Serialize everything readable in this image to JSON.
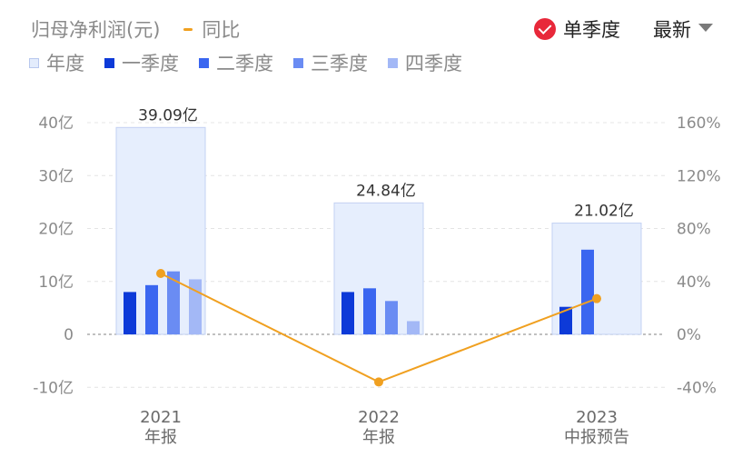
{
  "header": {
    "title": "归母净利润(元)",
    "yoy_label": "同比",
    "single_quarter_label": "单季度",
    "latest_label": "最新"
  },
  "legend": [
    {
      "label": "年度",
      "color": "#e3ecfc",
      "border": "#b8c8ee"
    },
    {
      "label": "一季度",
      "color": "#0d3ad8"
    },
    {
      "label": "二季度",
      "color": "#3a66f0"
    },
    {
      "label": "三季度",
      "color": "#6a8cf3"
    },
    {
      "label": "四季度",
      "color": "#a3b8f6"
    }
  ],
  "chart_data": {
    "type": "bar",
    "categories": [
      {
        "year": "2021",
        "kind": "年报"
      },
      {
        "year": "2022",
        "kind": "年报"
      },
      {
        "year": "2023",
        "kind": "中报预告"
      }
    ],
    "annual_values": [
      39.09,
      24.84,
      21.02
    ],
    "annual_labels": [
      "39.09亿",
      "24.84亿",
      "21.02亿"
    ],
    "series": [
      {
        "name": "一季度",
        "values": [
          8,
          8,
          5.2
        ]
      },
      {
        "name": "二季度",
        "values": [
          9.3,
          8.7,
          16
        ]
      },
      {
        "name": "三季度",
        "values": [
          11.9,
          6.3,
          null
        ]
      },
      {
        "name": "四季度",
        "values": [
          10.4,
          2.5,
          null
        ]
      }
    ],
    "yoy": {
      "name": "同比",
      "values": [
        46,
        -36,
        27
      ]
    },
    "y_left": {
      "ticks": [
        40,
        30,
        20,
        10,
        0,
        -10
      ],
      "labels": [
        "40亿",
        "30亿",
        "20亿",
        "10亿",
        "0",
        "-10亿"
      ],
      "range": [
        -10,
        40
      ]
    },
    "y_right": {
      "ticks": [
        160,
        120,
        80,
        40,
        0,
        -40
      ],
      "labels": [
        "160%",
        "120%",
        "80%",
        "40%",
        "0%",
        "-40%"
      ],
      "range": [
        -40,
        160
      ]
    },
    "grid": true,
    "colors": {
      "annual_fill": "#e6eefd",
      "annual_border": "#c3d1f3",
      "q1": "#0d3ad8",
      "q2": "#3a66f0",
      "q3": "#6a8cf3",
      "q4": "#a3b8f6",
      "yoy_line": "#f0a020"
    }
  }
}
